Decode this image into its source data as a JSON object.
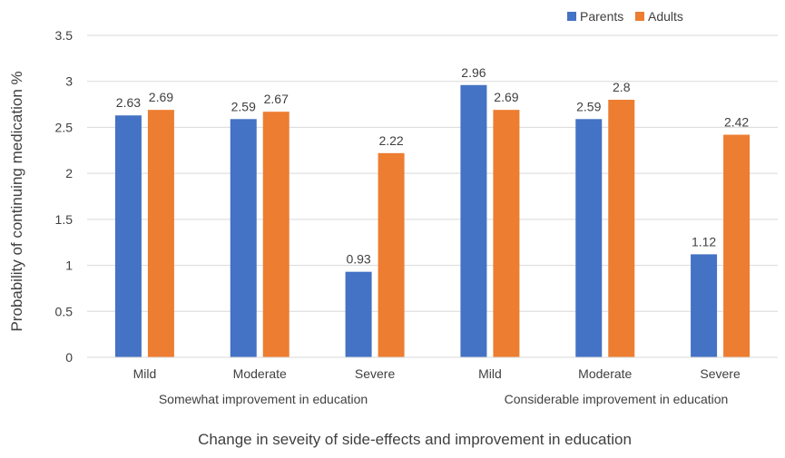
{
  "chart_data": {
    "type": "bar",
    "xlabel": "Change in seveity of side-effects and improvement in education",
    "ylabel": "Probability of continuing medication %",
    "ylim": [
      0,
      3.5
    ],
    "yticks": [
      "0",
      "0.5",
      "1",
      "1.5",
      "2",
      "2.5",
      "3",
      "3.5"
    ],
    "grid": true,
    "legend_position": "top-right",
    "groups": [
      {
        "label": "Somewhat improvement in education",
        "categories": [
          "Mild",
          "Moderate",
          "Severe"
        ]
      },
      {
        "label": "Considerable improvement in education",
        "categories": [
          "Mild",
          "Moderate",
          "Severe"
        ]
      }
    ],
    "categories": [
      "Mild",
      "Moderate",
      "Severe",
      "Mild",
      "Moderate",
      "Severe"
    ],
    "series": [
      {
        "name": "Parents",
        "color": "#4472C4",
        "values": [
          2.63,
          2.59,
          0.93,
          2.96,
          2.59,
          1.12
        ],
        "labels": [
          "2.63",
          "2.59",
          "0.93",
          "2.96",
          "2.59",
          "1.12"
        ]
      },
      {
        "name": "Adults",
        "color": "#ED7D31",
        "values": [
          2.69,
          2.67,
          2.22,
          2.69,
          2.8,
          2.42
        ],
        "labels": [
          "2.69",
          "2.67",
          "2.22",
          "2.69",
          "2.8",
          "2.42"
        ]
      }
    ]
  }
}
